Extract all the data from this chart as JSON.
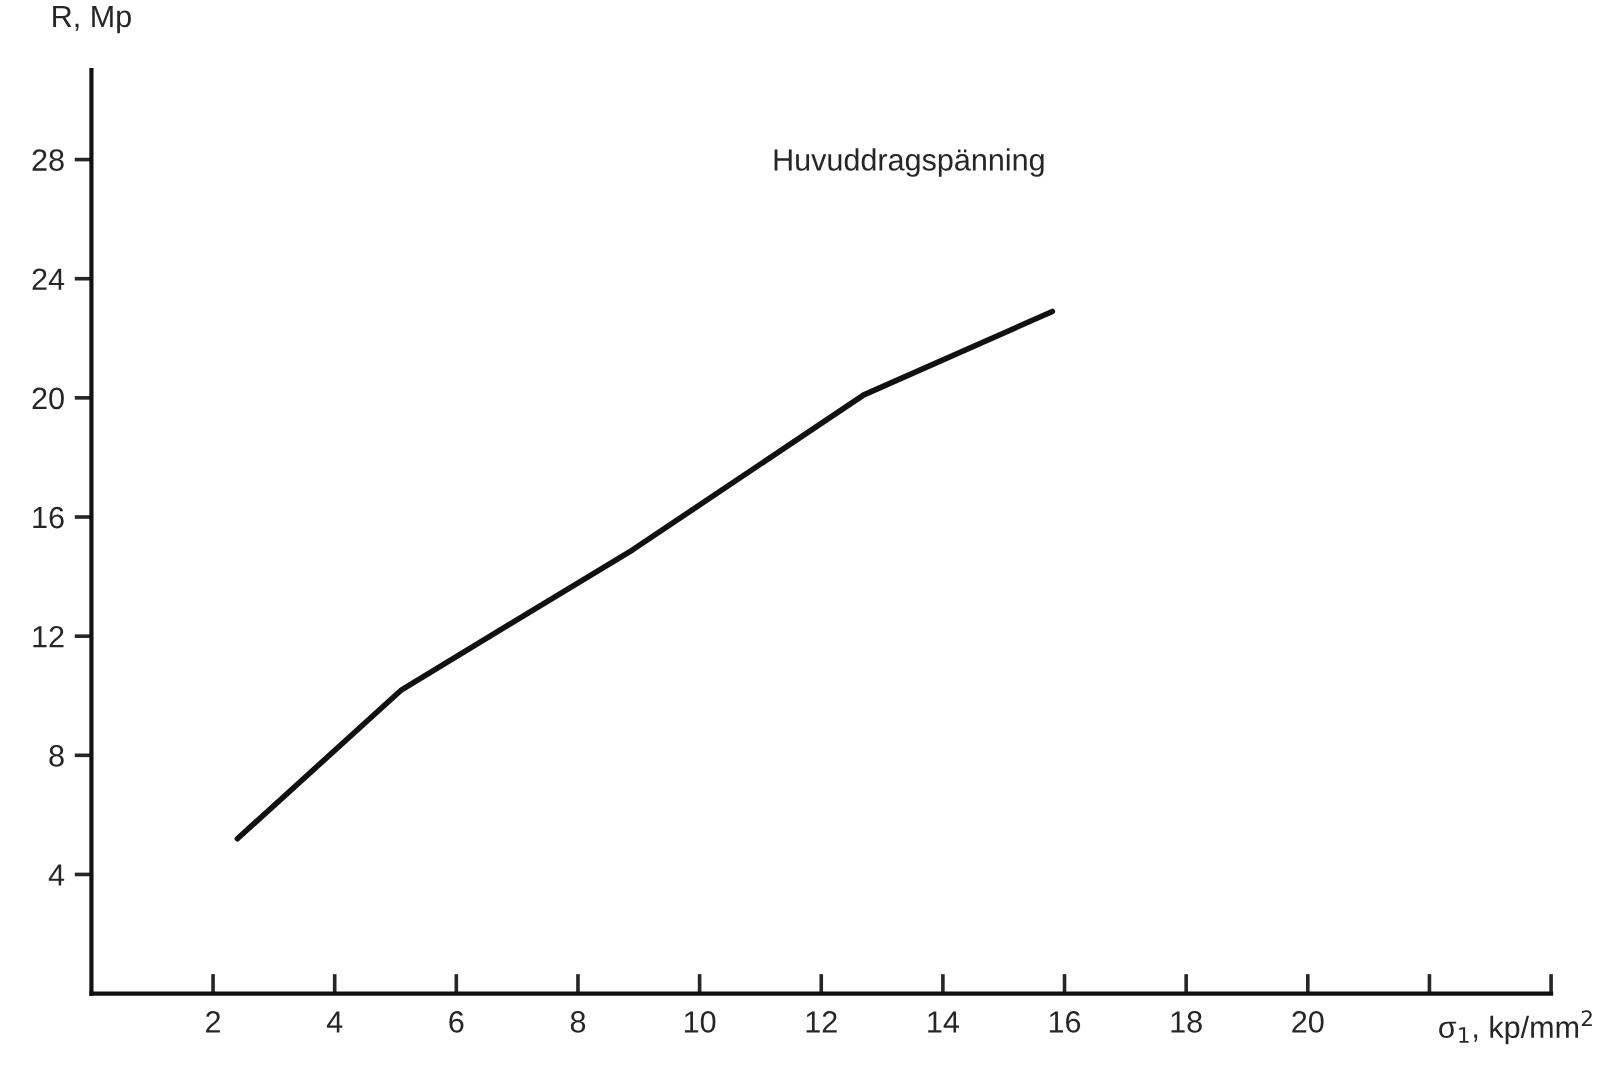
{
  "chart_data": {
    "type": "line",
    "xlabel": "σ$_{1}$, kp/mm$^{2}$",
    "ylabel": "R, Mp",
    "annotations": [
      "Huvuddragspänning"
    ],
    "x": [
      2.4,
      5.1,
      8.9,
      12.7,
      15.8
    ],
    "series": [
      {
        "color": "#111111",
        "values": [
          5.2,
          10.2,
          14.9,
          20.1,
          22.9
        ]
      }
    ],
    "xlim": [
      0,
      24
    ],
    "ylim": [
      0,
      31
    ],
    "xticks": [
      2,
      4,
      6,
      8,
      10,
      12,
      14,
      16,
      18,
      20,
      {
        "value": 22,
        "label": null
      },
      {
        "value": 24,
        "label": null
      }
    ],
    "yticks": [
      4,
      8,
      12,
      16,
      20,
      24,
      28
    ],
    "grid": false,
    "legend": false,
    "marker": "none",
    "line_style": "solid"
  }
}
